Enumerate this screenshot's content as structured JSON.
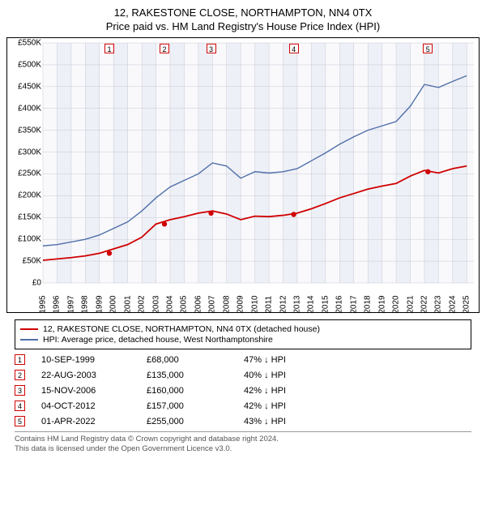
{
  "title_line1": "12, RAKESTONE CLOSE, NORTHAMPTON, NN4 0TX",
  "title_line2": "Price paid vs. HM Land Registry's House Price Index (HPI)",
  "chart": {
    "type": "line",
    "background_color": "#f9f9fc",
    "x": {
      "min": 1995,
      "max": 2025.5,
      "ticks": [
        1995,
        1996,
        1997,
        1998,
        1999,
        2000,
        2001,
        2002,
        2003,
        2004,
        2005,
        2006,
        2007,
        2008,
        2009,
        2010,
        2011,
        2012,
        2013,
        2014,
        2015,
        2016,
        2017,
        2018,
        2019,
        2020,
        2021,
        2022,
        2023,
        2024,
        2025
      ]
    },
    "y": {
      "min": 0,
      "max": 550000,
      "tick_step": 50000,
      "tick_labels": [
        "£0",
        "£50K",
        "£100K",
        "£150K",
        "£200K",
        "£250K",
        "£300K",
        "£350K",
        "£400K",
        "£450K",
        "£500K",
        "£550K"
      ]
    },
    "series": [
      {
        "name": "hpi",
        "label": "HPI: Average price, detached house, West Northamptonshire",
        "color": "#4f6fa8",
        "width": 1.4,
        "points": [
          [
            1995,
            85000
          ],
          [
            1996,
            88000
          ],
          [
            1997,
            94000
          ],
          [
            1998,
            100000
          ],
          [
            1999,
            110000
          ],
          [
            2000,
            125000
          ],
          [
            2001,
            140000
          ],
          [
            2002,
            165000
          ],
          [
            2003,
            195000
          ],
          [
            2004,
            220000
          ],
          [
            2005,
            235000
          ],
          [
            2006,
            250000
          ],
          [
            2007,
            275000
          ],
          [
            2008,
            268000
          ],
          [
            2009,
            240000
          ],
          [
            2010,
            255000
          ],
          [
            2011,
            252000
          ],
          [
            2012,
            255000
          ],
          [
            2013,
            262000
          ],
          [
            2014,
            280000
          ],
          [
            2015,
            298000
          ],
          [
            2016,
            318000
          ],
          [
            2017,
            335000
          ],
          [
            2018,
            350000
          ],
          [
            2019,
            360000
          ],
          [
            2020,
            370000
          ],
          [
            2021,
            405000
          ],
          [
            2022,
            455000
          ],
          [
            2023,
            448000
          ],
          [
            2024,
            462000
          ],
          [
            2025,
            475000
          ]
        ]
      },
      {
        "name": "price_paid",
        "label": "12, RAKESTONE CLOSE, NORTHAMPTON, NN4 0TX (detached house)",
        "color": "#d00000",
        "width": 1.8,
        "points": [
          [
            1995,
            52000
          ],
          [
            1996,
            55000
          ],
          [
            1997,
            58000
          ],
          [
            1998,
            62000
          ],
          [
            1999,
            68000
          ],
          [
            2000,
            78000
          ],
          [
            2001,
            88000
          ],
          [
            2002,
            105000
          ],
          [
            2003,
            135000
          ],
          [
            2004,
            145000
          ],
          [
            2005,
            152000
          ],
          [
            2006,
            160000
          ],
          [
            2007,
            165000
          ],
          [
            2008,
            158000
          ],
          [
            2009,
            145000
          ],
          [
            2010,
            153000
          ],
          [
            2011,
            152000
          ],
          [
            2012,
            155000
          ],
          [
            2013,
            160000
          ],
          [
            2014,
            170000
          ],
          [
            2015,
            182000
          ],
          [
            2016,
            195000
          ],
          [
            2017,
            205000
          ],
          [
            2018,
            215000
          ],
          [
            2019,
            222000
          ],
          [
            2020,
            228000
          ],
          [
            2021,
            245000
          ],
          [
            2022,
            258000
          ],
          [
            2023,
            252000
          ],
          [
            2024,
            262000
          ],
          [
            2025,
            268000
          ]
        ]
      }
    ],
    "markers": [
      {
        "n": "1",
        "x": 1999.7,
        "y_at_top": true,
        "dot_x": 1999.7,
        "dot_y": 68000
      },
      {
        "n": "2",
        "x": 2003.6,
        "y_at_top": true,
        "dot_x": 2003.6,
        "dot_y": 135000
      },
      {
        "n": "3",
        "x": 2006.9,
        "y_at_top": true,
        "dot_x": 2006.9,
        "dot_y": 160000
      },
      {
        "n": "4",
        "x": 2012.75,
        "y_at_top": true,
        "dot_x": 2012.75,
        "dot_y": 157000
      },
      {
        "n": "5",
        "x": 2022.25,
        "y_at_top": true,
        "dot_x": 2022.25,
        "dot_y": 255000
      }
    ],
    "marker_color": "#d00000",
    "grid_color": "#c8c8d4",
    "band_color": "#eef0f7"
  },
  "legend": {
    "items": [
      {
        "color": "#d00000",
        "text": "12, RAKESTONE CLOSE, NORTHAMPTON, NN4 0TX (detached house)"
      },
      {
        "color": "#4f6fa8",
        "text": "HPI: Average price, detached house, West Northamptonshire"
      }
    ]
  },
  "transactions": [
    {
      "n": "1",
      "date": "10-SEP-1999",
      "price": "£68,000",
      "diff": "47% ↓ HPI"
    },
    {
      "n": "2",
      "date": "22-AUG-2003",
      "price": "£135,000",
      "diff": "40% ↓ HPI"
    },
    {
      "n": "3",
      "date": "15-NOV-2006",
      "price": "£160,000",
      "diff": "42% ↓ HPI"
    },
    {
      "n": "4",
      "date": "04-OCT-2012",
      "price": "£157,000",
      "diff": "42% ↓ HPI"
    },
    {
      "n": "5",
      "date": "01-APR-2022",
      "price": "£255,000",
      "diff": "43% ↓ HPI"
    }
  ],
  "footer_line1": "Contains HM Land Registry data © Crown copyright and database right 2024.",
  "footer_line2": "This data is licensed under the Open Government Licence v3.0."
}
